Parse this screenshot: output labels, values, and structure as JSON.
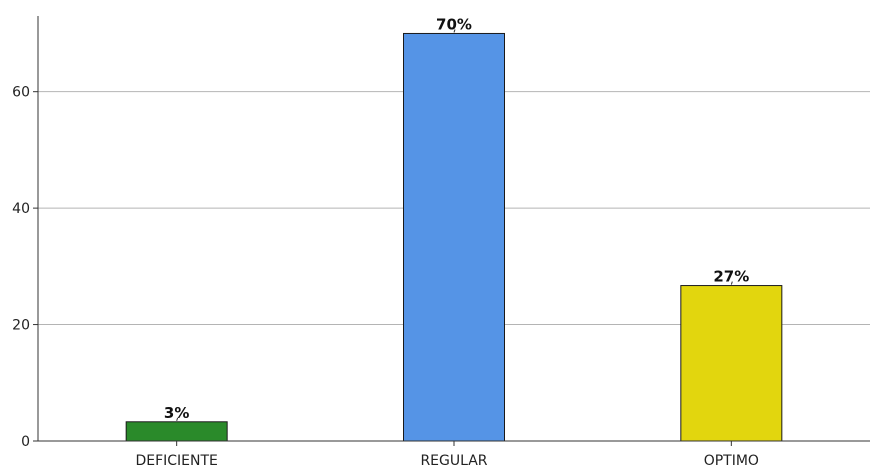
{
  "chart_data": {
    "type": "bar",
    "categories": [
      "DEFICIENTE",
      "REGULAR",
      "OPTIMO"
    ],
    "values": [
      3.3,
      70,
      26.7
    ],
    "data_labels": [
      "3%",
      "70%",
      "27%"
    ],
    "colors": [
      "#2a8a2a",
      "#5594e6",
      "#e2d60e"
    ],
    "ylim": [
      0,
      73
    ],
    "yticks": [
      0,
      20,
      40,
      60
    ],
    "ytick_labels": [
      "0",
      "20",
      "40",
      "60"
    ],
    "grid": true,
    "xlabel": "",
    "ylabel": "",
    "title": ""
  }
}
